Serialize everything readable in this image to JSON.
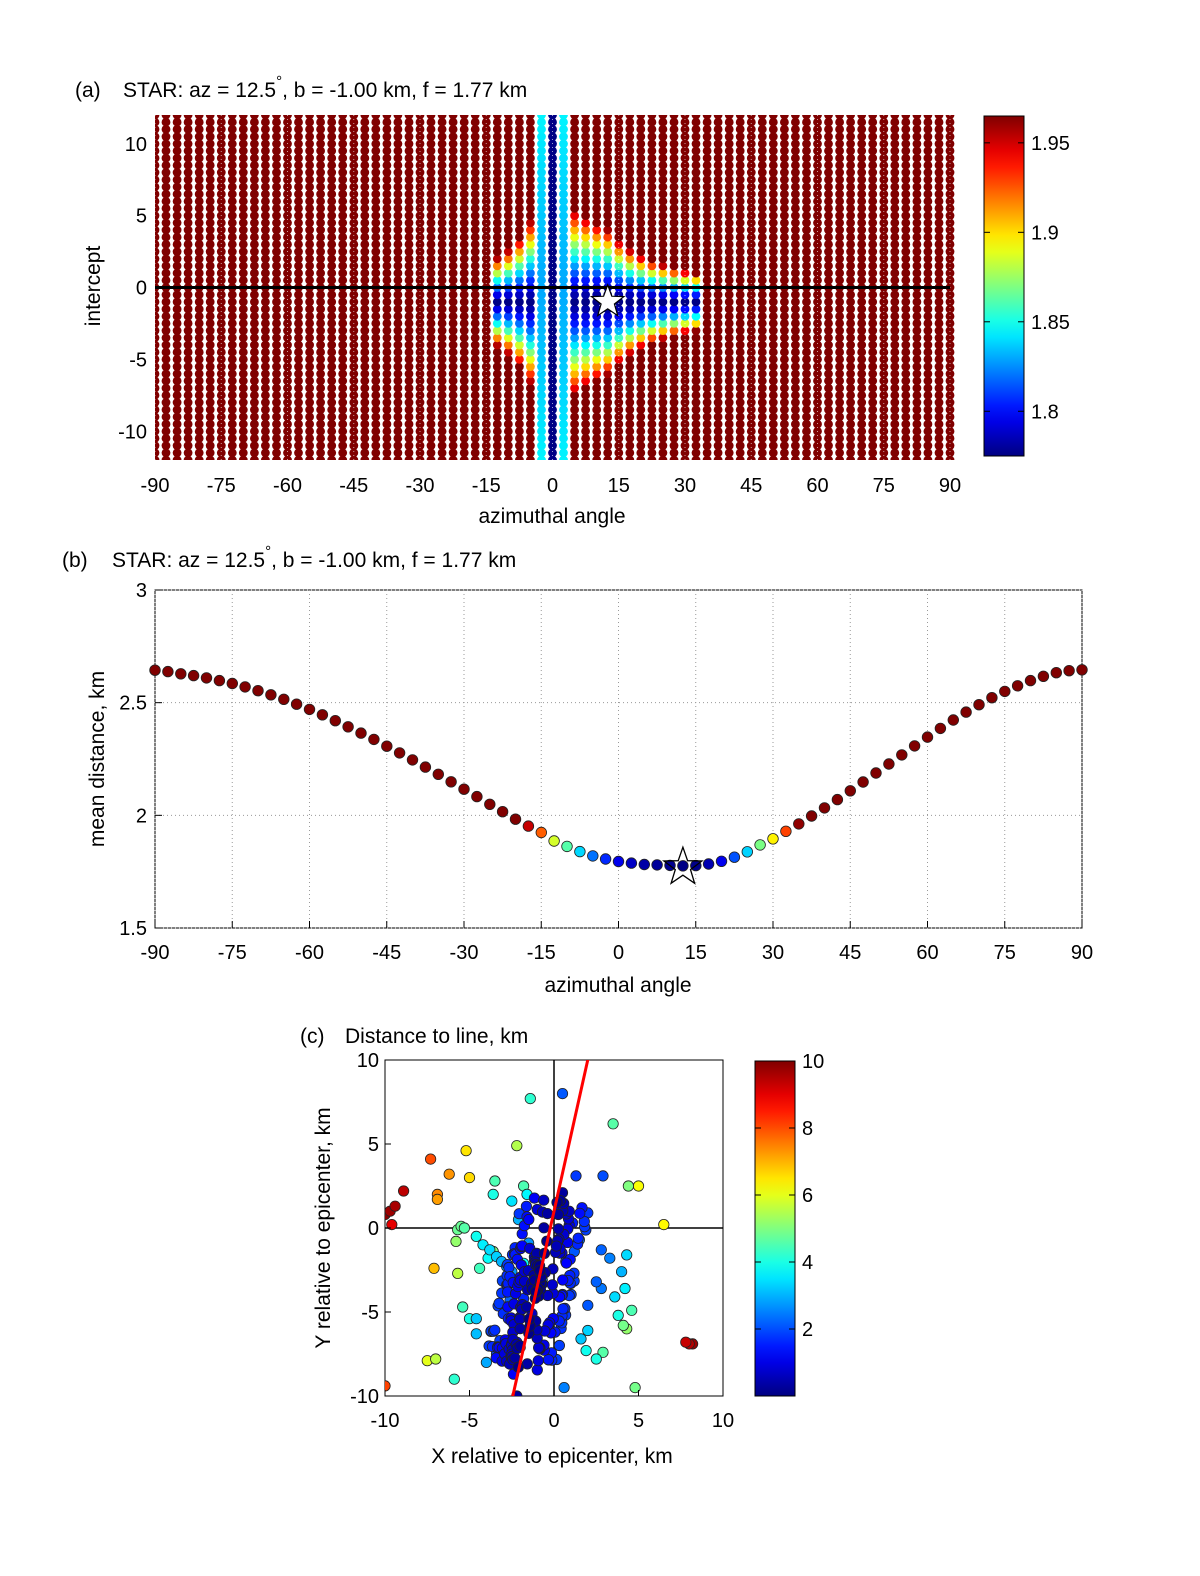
{
  "chart_data": [
    {
      "panel": "(a)",
      "type": "heatmap",
      "title": "STAR: az = 12.5",
      "title_deg": "°",
      "title_rest": ", b = -1.00 km, f = 1.77 km",
      "xlabel": "azimuthal angle",
      "ylabel": "intercept",
      "xlim": [
        -90,
        90
      ],
      "ylim": [
        -12,
        12
      ],
      "xticks": [
        "-90",
        "-75",
        "-60",
        "-45",
        "-30",
        "-15",
        "0",
        "15",
        "30",
        "45",
        "60",
        "75",
        "90"
      ],
      "yticks": [
        "-10",
        "-5",
        "0",
        "5",
        "10"
      ],
      "grid": true,
      "colorbar": {
        "range": [
          1.775,
          1.965
        ],
        "ticks": [
          "1.8",
          "1.85",
          "1.9",
          "1.95"
        ]
      },
      "reference_line_intercept": 0,
      "best_fit_star": {
        "x": 12.5,
        "y": -1.0
      },
      "value_model": "mean distance per (angle, intercept); minimum 1.77 at 0°, spreading lobes toward 12.5°, -1.0; saturates above 1.96"
    },
    {
      "panel": "(b)",
      "type": "scatter",
      "title": "STAR: az = 12.5",
      "title_deg": "°",
      "title_rest": ", b = -1.00 km, f = 1.77 km",
      "xlabel": "azimuthal angle",
      "ylabel": "mean distance, km",
      "xlim": [
        -90,
        90
      ],
      "ylim": [
        1.5,
        3
      ],
      "xticks": [
        "-90",
        "-75",
        "-60",
        "-45",
        "-30",
        "-15",
        "0",
        "15",
        "30",
        "45",
        "60",
        "75",
        "90"
      ],
      "yticks": [
        "1.5",
        "2",
        "2.5",
        "3"
      ],
      "grid": true,
      "x": [
        -90,
        -87.5,
        -85,
        -82.5,
        -80,
        -77.5,
        -75,
        -72.5,
        -70,
        -67.5,
        -65,
        -62.5,
        -60,
        -57.5,
        -55,
        -52.5,
        -50,
        -47.5,
        -45,
        -42.5,
        -40,
        -37.5,
        -35,
        -32.5,
        -30,
        -27.5,
        -25,
        -22.5,
        -20,
        -17.5,
        -15,
        -12.5,
        -10,
        -7.5,
        -5,
        -2.5,
        0,
        2.5,
        5,
        7.5,
        10,
        12.5,
        15,
        17.5,
        20,
        22.5,
        25,
        27.5,
        30,
        32.5,
        35,
        37.5,
        40,
        42.5,
        45,
        47.5,
        50,
        52.5,
        55,
        57.5,
        60,
        62.5,
        65,
        67.5,
        70,
        72.5,
        75,
        77.5,
        80,
        82.5,
        85,
        87.5,
        90
      ],
      "values": [
        2.644,
        2.638,
        2.628,
        2.62,
        2.61,
        2.598,
        2.585,
        2.57,
        2.553,
        2.535,
        2.515,
        2.493,
        2.47,
        2.446,
        2.42,
        2.393,
        2.365,
        2.337,
        2.307,
        2.277,
        2.246,
        2.214,
        2.182,
        2.149,
        2.116,
        2.083,
        2.049,
        2.016,
        1.983,
        1.952,
        1.924,
        1.886,
        1.862,
        1.839,
        1.82,
        1.806,
        1.795,
        1.788,
        1.782,
        1.78,
        1.778,
        1.776,
        1.777,
        1.784,
        1.796,
        1.814,
        1.838,
        1.869,
        1.896,
        1.929,
        1.962,
        1.997,
        2.033,
        2.07,
        2.109,
        2.148,
        2.188,
        2.228,
        2.268,
        2.308,
        2.347,
        2.386,
        2.423,
        2.458,
        2.491,
        2.522,
        2.55,
        2.575,
        2.598,
        2.617,
        2.633,
        2.642,
        2.646
      ],
      "color_range": [
        1.775,
        1.965
      ],
      "best_fit_star": {
        "x": 12.5,
        "y": 1.77
      }
    },
    {
      "panel": "(c)",
      "type": "scatter",
      "title": "Distance to line, km",
      "xlabel": "X relative to epicenter, km",
      "ylabel": "Y relative to epicenter, km",
      "xlim": [
        -10,
        10
      ],
      "ylim": [
        -10,
        10
      ],
      "xticks": [
        "-10",
        "-5",
        "0",
        "5",
        "10"
      ],
      "yticks": [
        "-10",
        "-5",
        "0",
        "5",
        "10"
      ],
      "colorbar": {
        "range": [
          0,
          10
        ],
        "ticks": [
          "2",
          "4",
          "6",
          "8",
          "10"
        ]
      },
      "fit_line": {
        "azimuth_deg": 12.5,
        "intercept_km": -1.0
      },
      "color_value": "distance from each point to the fitted line (km)",
      "x": [
        -10,
        -9.7,
        -9.4,
        -8.9,
        -9.6,
        -7.3,
        -6.9,
        -6.9,
        -7.1,
        -6.2,
        -5.2,
        -5.0,
        -3.5,
        -3.6,
        -3.6,
        -2.5,
        -2.2,
        -2.1,
        -1.8,
        -1.6,
        -1.4,
        -1.0,
        -0.7,
        -1.8,
        -1.5,
        0.5,
        3.5,
        4.4,
        5.0,
        6.5,
        1.3,
        2.9,
        2.8,
        3.3,
        4.0,
        4.2,
        4.6,
        4.3,
        4.1,
        3.8,
        3.6,
        2.8,
        2.5,
        2.0,
        1.6,
        1.9,
        2.9,
        2.5,
        2.0,
        -5.7,
        -5.5,
        -5.3,
        -5.8,
        -4.6,
        -4.2,
        -3.8,
        -3.4,
        -3.1,
        -2.8,
        -2.5,
        -3.9,
        -4.4,
        -5.7,
        -5.4,
        -5.0,
        -3.0,
        -2.7,
        -3.2,
        -2.2,
        -2.9,
        -3.4,
        -2.0,
        -1.3,
        -1.8,
        -2.6,
        -4.0,
        -7.5,
        -7.0,
        -10,
        -5.9,
        -4.6,
        -4.6,
        -2.2,
        -2.4,
        -0.9,
        0.6,
        4.8,
        7.8,
        8.0,
        8.2,
        4.3,
        1.1,
        0.9,
        0.5,
        0.4,
        1.0,
        1.5,
        1.2,
        0.7
      ],
      "y": [
        0.8,
        1.0,
        1.3,
        2.2,
        0.2,
        4.1,
        1.7,
        2.0,
        -2.4,
        3.2,
        4.6,
        3.0,
        2.8,
        2.0,
        -1.4,
        1.6,
        4.9,
        0.5,
        2.5,
        2.0,
        7.7,
        -1.8,
        -3.1,
        -2.1,
        -0.9,
        8.0,
        6.2,
        2.5,
        2.5,
        0.2,
        3.1,
        3.1,
        -1.3,
        -1.8,
        -2.6,
        -3.6,
        -4.9,
        -6.0,
        -5.8,
        -5.2,
        -4.1,
        -3.6,
        -3.2,
        -6.1,
        -6.6,
        -7.3,
        -7.4,
        -7.8,
        -4.6,
        -0.1,
        0.1,
        0.0,
        -0.8,
        -0.5,
        -1.0,
        -1.3,
        -1.7,
        -2.0,
        -2.3,
        -2.6,
        -1.8,
        -2.4,
        -2.7,
        -4.7,
        -5.4,
        -5.1,
        -5.4,
        -6.7,
        -6.8,
        -7.3,
        -7.5,
        -7.1,
        -5.1,
        -4.2,
        -4.3,
        -8.0,
        -7.9,
        -7.8,
        -9.4,
        -9.0,
        -6.3,
        -5.4,
        -10,
        -8.7,
        -7.1,
        -9.5,
        -9.5,
        -6.8,
        -6.9,
        -6.9,
        -1.6,
        0.3,
        1.0,
        2.1,
        1.1,
        -3.3,
        -0.7,
        -1.4,
        -2.0
      ],
      "values": [
        9.9,
        9.7,
        9.6,
        9.4,
        9.0,
        8.0,
        7.2,
        7.4,
        6.9,
        7.3,
        6.5,
        6.6,
        4.5,
        4.0,
        5.0,
        3.5,
        5.5,
        3.0,
        4.5,
        3.7,
        4.2,
        2.6,
        2.9,
        3.8,
        2.7,
        2.1,
        4.6,
        5.0,
        6.2,
        6.3,
        1.8,
        2.0,
        2.2,
        2.5,
        3.0,
        3.6,
        4.5,
        5.2,
        4.9,
        4.0,
        3.4,
        2.4,
        2.2,
        3.3,
        3.2,
        3.9,
        4.6,
        4.0,
        2.1,
        4.8,
        4.8,
        4.6,
        5.2,
        3.9,
        3.6,
        3.4,
        3.3,
        3.0,
        2.8,
        2.7,
        3.8,
        4.4,
        5.6,
        4.4,
        4.0,
        1.7,
        1.5,
        1.8,
        1.0,
        1.6,
        2.0,
        0.7,
        0.6,
        1.6,
        2.2,
        2.9,
        6.0,
        5.6,
        8.1,
        4.2,
        3.1,
        3.2,
        0.3,
        1.2,
        0.8,
        2.5,
        4.9,
        9.3,
        9.5,
        9.7,
        3.4,
        1.5,
        0.6,
        0.3,
        0.6,
        2.4,
        2.3,
        2.1,
        1.9
      ]
    }
  ]
}
